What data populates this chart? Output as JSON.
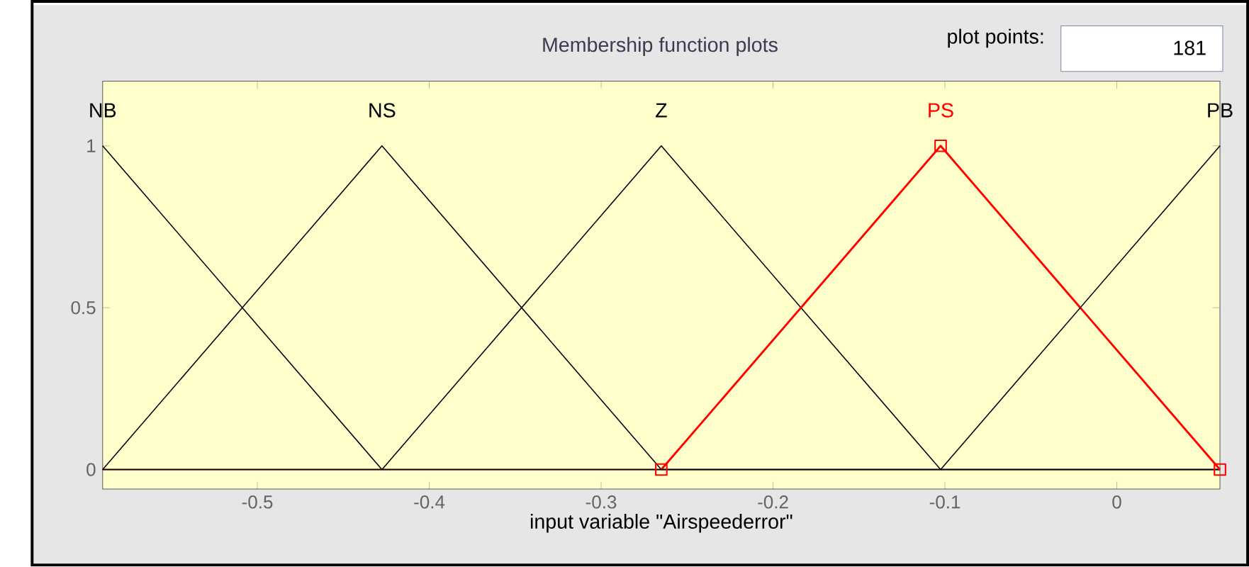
{
  "chart_data": {
    "type": "line",
    "title": "Membership function plots",
    "xlabel": "input variable \"Airspeederror\"",
    "annotations": [
      "plot points:",
      "181"
    ],
    "xlim": [
      -0.59,
      0.06
    ],
    "ylim": [
      -0.06,
      1.2
    ],
    "xticks": [
      -0.5,
      -0.4,
      -0.3,
      -0.2,
      -0.1,
      0
    ],
    "yticks": [
      0,
      0.5,
      1
    ],
    "grid": false,
    "series": [
      {
        "name": "NB",
        "color": "#000000",
        "x": [
          -0.59,
          -0.4275,
          0.06
        ],
        "values": [
          1,
          0,
          0
        ]
      },
      {
        "name": "NS",
        "color": "#000000",
        "x": [
          -0.59,
          -0.4275,
          -0.265,
          0.06
        ],
        "values": [
          0,
          1,
          0,
          0
        ]
      },
      {
        "name": "Z",
        "color": "#000000",
        "x": [
          -0.59,
          -0.4275,
          -0.265,
          -0.1025,
          0.06
        ],
        "values": [
          0,
          0,
          1,
          0,
          0
        ]
      },
      {
        "name": "PS",
        "color": "#ff0000",
        "marker": "square",
        "x": [
          -0.265,
          -0.1025,
          0.06
        ],
        "values": [
          0,
          1,
          0
        ]
      },
      {
        "color": "#ff0000",
        "x": [
          -0.59,
          -0.265
        ],
        "values": [
          0,
          0
        ]
      },
      {
        "name": "PB",
        "color": "#000000",
        "x": [
          -0.59,
          -0.1025,
          0.06
        ],
        "values": [
          0,
          0,
          1
        ]
      }
    ]
  }
}
